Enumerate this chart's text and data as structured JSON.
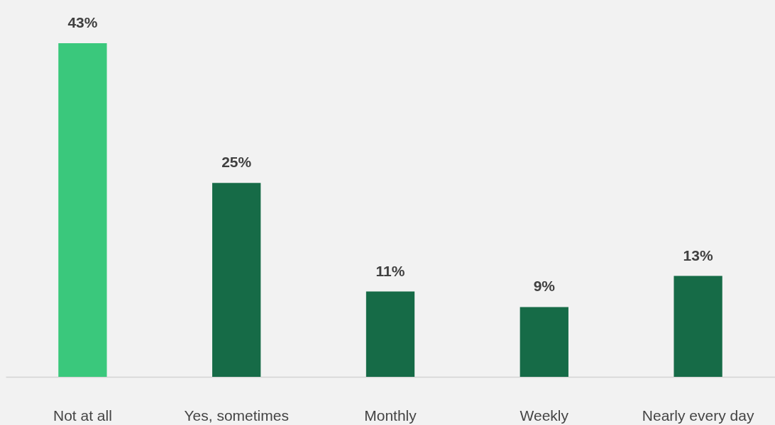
{
  "chart_data": {
    "type": "bar",
    "categories": [
      "Not at all",
      "Yes, sometimes",
      "Monthly",
      "Weekly",
      "Nearly every day"
    ],
    "values": [
      43,
      25,
      11,
      9,
      13
    ],
    "colors": [
      "#3ac87c",
      "#166b47",
      "#166b47",
      "#166b47",
      "#166b47"
    ],
    "value_labels": [
      "43%",
      "25%",
      "11%",
      "9%",
      "13%"
    ],
    "grid": false
  }
}
